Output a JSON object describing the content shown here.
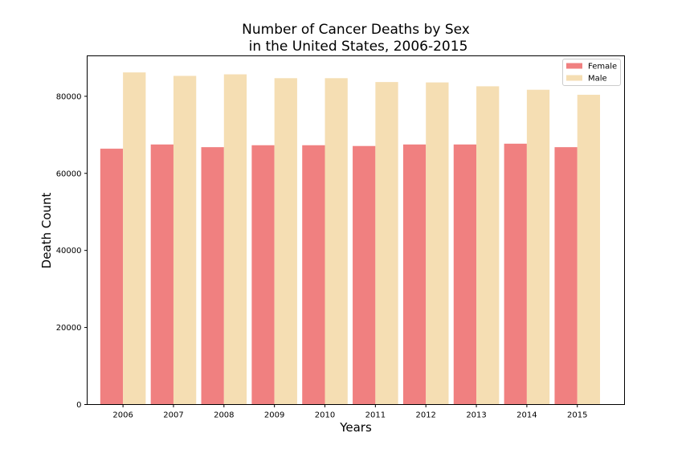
{
  "chart_data": {
    "type": "bar",
    "title": [
      "Number of Cancer Deaths by Sex",
      "in the United States, 2006-2015"
    ],
    "xlabel": "Years",
    "ylabel": "Death Count",
    "categories": [
      "2006",
      "2007",
      "2008",
      "2009",
      "2010",
      "2011",
      "2012",
      "2013",
      "2014",
      "2015"
    ],
    "series": [
      {
        "name": "Female",
        "color": "#f08080",
        "values": [
          66400,
          67500,
          66800,
          67300,
          67300,
          67100,
          67500,
          67500,
          67700,
          66800
        ]
      },
      {
        "name": "Male",
        "color": "#f5deb3",
        "values": [
          86200,
          85300,
          85700,
          84700,
          84700,
          83700,
          83600,
          82600,
          81700,
          80400
        ]
      }
    ],
    "ylim": [
      0,
      90500
    ],
    "yticks": [
      0,
      20000,
      40000,
      60000,
      80000
    ],
    "ytick_labels": [
      "0",
      "20000",
      "40000",
      "60000",
      "80000"
    ],
    "grid": false,
    "legend_position": "upper right"
  }
}
